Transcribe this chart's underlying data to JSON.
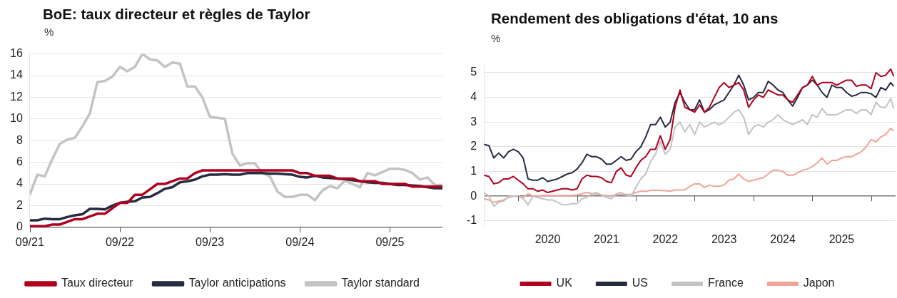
{
  "chart_data": [
    {
      "type": "line",
      "title": "BoE: taux directeur et règles de Taylor",
      "ylabel": "%",
      "grid": "y",
      "legend": "bottom",
      "marker": "none",
      "x": [
        "2021-09",
        "2021-10",
        "2021-11",
        "2021-12",
        "2022-01",
        "2022-02",
        "2022-03",
        "2022-04",
        "2022-05",
        "2022-06",
        "2022-07",
        "2022-08",
        "2022-09",
        "2022-10",
        "2022-11",
        "2022-12",
        "2023-01",
        "2023-02",
        "2023-03",
        "2023-04",
        "2023-05",
        "2023-06",
        "2023-07",
        "2023-08",
        "2023-09",
        "2023-10",
        "2023-11",
        "2023-12",
        "2024-01",
        "2024-02",
        "2024-03",
        "2024-04",
        "2024-05",
        "2024-06",
        "2024-07",
        "2024-08",
        "2024-09",
        "2024-10",
        "2024-11",
        "2024-12",
        "2025-01",
        "2025-02",
        "2025-03",
        "2025-04",
        "2025-05",
        "2025-06",
        "2025-07",
        "2025-08",
        "2025-09",
        "2025-10",
        "2025-11",
        "2025-12",
        "2026-01",
        "2026-02",
        "2026-03",
        "2026-04"
      ],
      "xlim": [
        "2021-09",
        "2026-04"
      ],
      "xticks": [
        {
          "value": "2021-09",
          "label": "09/21"
        },
        {
          "value": "2022-09",
          "label": "09/22"
        },
        {
          "value": "2023-09",
          "label": "09/23"
        },
        {
          "value": "2024-09",
          "label": "09/24"
        },
        {
          "value": "2025-09",
          "label": "09/25"
        }
      ],
      "ylim": [
        0,
        16
      ],
      "yticks": [
        0,
        2,
        4,
        6,
        8,
        10,
        12,
        14,
        16
      ],
      "series": [
        {
          "name": "Taux directeur",
          "color": "#b0001e",
          "values": [
            0.1,
            0.1,
            0.1,
            0.25,
            0.25,
            0.5,
            0.75,
            0.75,
            1.0,
            1.25,
            1.25,
            1.75,
            2.25,
            2.25,
            3.0,
            3.0,
            3.5,
            4.0,
            4.0,
            4.25,
            4.5,
            4.5,
            5.0,
            5.25,
            5.25,
            5.25,
            5.25,
            5.25,
            5.25,
            5.25,
            5.25,
            5.25,
            5.25,
            5.25,
            5.25,
            5.25,
            5.0,
            5.0,
            4.75,
            4.75,
            4.75,
            4.5,
            4.5,
            4.5,
            4.25,
            4.25,
            4.25,
            4.0,
            4.0,
            4.0,
            4.0,
            3.75,
            3.75,
            3.75,
            3.75,
            3.75
          ]
        },
        {
          "name": "Taylor anticipations",
          "color": "#262c40",
          "values": [
            0.65,
            0.65,
            0.8,
            0.75,
            0.75,
            0.95,
            1.1,
            1.2,
            1.7,
            1.7,
            1.65,
            2.0,
            2.25,
            2.35,
            2.4,
            2.75,
            2.8,
            3.15,
            3.55,
            3.7,
            4.15,
            4.25,
            4.4,
            4.7,
            4.85,
            4.85,
            4.9,
            4.85,
            4.85,
            5.0,
            5.0,
            5.0,
            4.95,
            4.95,
            4.9,
            4.85,
            4.65,
            4.6,
            4.75,
            4.6,
            4.55,
            4.5,
            4.45,
            4.35,
            4.25,
            4.15,
            4.1,
            4.1,
            4.0,
            3.9,
            3.9,
            3.85,
            3.8,
            3.7,
            3.6,
            3.6
          ]
        },
        {
          "name": "Taylor standard",
          "color": "#c3c3c3",
          "values": [
            3.0,
            4.85,
            4.7,
            6.3,
            7.7,
            8.1,
            8.25,
            9.3,
            10.5,
            13.4,
            13.5,
            13.9,
            14.8,
            14.4,
            14.8,
            16.0,
            15.5,
            15.4,
            14.8,
            15.2,
            15.1,
            13.0,
            13.0,
            12.0,
            10.2,
            10.1,
            10.0,
            6.8,
            5.7,
            5.9,
            5.9,
            5.0,
            4.7,
            3.3,
            2.8,
            2.8,
            3.0,
            3.0,
            2.5,
            3.4,
            3.8,
            3.6,
            4.3,
            4.0,
            3.7,
            5.0,
            4.8,
            5.1,
            5.4,
            5.4,
            5.3,
            5.0,
            4.4,
            4.6,
            3.9,
            3.9
          ]
        }
      ]
    },
    {
      "type": "line",
      "title": "Rendement des obligations d'état, 10 ans",
      "ylabel": "%",
      "grid": "y",
      "legend": "bottom",
      "marker": "none",
      "x": [
        "2019-06",
        "2019-07",
        "2019-08",
        "2019-09",
        "2019-10",
        "2019-11",
        "2019-12",
        "2020-01",
        "2020-02",
        "2020-03",
        "2020-04",
        "2020-05",
        "2020-06",
        "2020-07",
        "2020-08",
        "2020-09",
        "2020-10",
        "2020-11",
        "2020-12",
        "2021-01",
        "2021-02",
        "2021-03",
        "2021-04",
        "2021-05",
        "2021-06",
        "2021-07",
        "2021-08",
        "2021-09",
        "2021-10",
        "2021-11",
        "2021-12",
        "2022-01",
        "2022-02",
        "2022-03",
        "2022-04",
        "2022-05",
        "2022-06",
        "2022-07",
        "2022-08",
        "2022-09",
        "2022-10",
        "2022-11",
        "2022-12",
        "2023-01",
        "2023-02",
        "2023-03",
        "2023-04",
        "2023-05",
        "2023-06",
        "2023-07",
        "2023-08",
        "2023-09",
        "2023-10",
        "2023-11",
        "2023-12",
        "2024-01",
        "2024-02",
        "2024-03",
        "2024-04",
        "2024-05",
        "2024-06",
        "2024-07",
        "2024-08",
        "2024-09",
        "2024-10",
        "2024-11",
        "2024-12",
        "2025-01",
        "2025-02",
        "2025-03",
        "2025-04",
        "2025-05",
        "2025-06",
        "2025-07",
        "2025-08",
        "2025-09",
        "2025-10",
        "2025-11",
        "2025-12",
        "2026-01",
        "2026-02",
        "2026-03",
        "2026-04",
        "2026-05",
        "2026-05-20"
      ],
      "xlim": [
        "2019-06",
        "2026-06"
      ],
      "xticks": [
        {
          "value": "2020-01",
          "label": null
        },
        {
          "value": "2020-07",
          "label": "2020"
        },
        {
          "value": "2021-01",
          "label": null
        },
        {
          "value": "2021-07",
          "label": "2021"
        },
        {
          "value": "2022-01",
          "label": null
        },
        {
          "value": "2022-07",
          "label": "2022"
        },
        {
          "value": "2023-01",
          "label": null
        },
        {
          "value": "2023-07",
          "label": "2023"
        },
        {
          "value": "2024-01",
          "label": null
        },
        {
          "value": "2024-07",
          "label": "2024"
        },
        {
          "value": "2025-01",
          "label": null
        },
        {
          "value": "2025-07",
          "label": "2025"
        },
        {
          "value": "2026-01",
          "label": null
        }
      ],
      "ylim": [
        -1.2,
        5.3
      ],
      "yticks": [
        -1,
        0,
        1,
        2,
        3,
        4,
        5
      ],
      "series": [
        {
          "name": "UK",
          "color": "#b0001e",
          "values": [
            0.85,
            0.8,
            0.5,
            0.55,
            0.7,
            0.7,
            0.8,
            0.65,
            0.5,
            0.3,
            0.3,
            0.2,
            0.25,
            0.15,
            0.2,
            0.25,
            0.3,
            0.3,
            0.25,
            0.3,
            0.7,
            0.85,
            0.8,
            0.8,
            0.75,
            0.6,
            0.55,
            1.0,
            1.15,
            0.85,
            0.8,
            1.15,
            1.45,
            1.6,
            1.9,
            1.9,
            2.45,
            1.9,
            2.3,
            3.6,
            4.3,
            3.6,
            3.5,
            3.4,
            3.7,
            3.4,
            3.6,
            4.0,
            4.4,
            4.6,
            4.4,
            4.5,
            4.6,
            4.3,
            3.6,
            3.9,
            4.1,
            4.0,
            4.3,
            4.2,
            4.1,
            4.1,
            3.9,
            3.8,
            4.1,
            4.4,
            4.5,
            4.85,
            4.5,
            4.6,
            4.6,
            4.6,
            4.5,
            4.6,
            4.7,
            4.7,
            4.45,
            4.5,
            4.5,
            4.35,
            5.0,
            4.85,
            4.9,
            5.15,
            4.85
          ]
        },
        {
          "name": "US",
          "color": "#262c40",
          "values": [
            2.1,
            2.05,
            1.55,
            1.75,
            1.55,
            1.8,
            1.9,
            1.8,
            1.55,
            0.7,
            0.65,
            0.65,
            0.75,
            0.6,
            0.65,
            0.7,
            0.8,
            0.9,
            0.95,
            1.1,
            1.35,
            1.7,
            1.6,
            1.6,
            1.5,
            1.3,
            1.3,
            1.45,
            1.6,
            1.45,
            1.5,
            1.8,
            2.0,
            2.4,
            2.9,
            2.9,
            3.2,
            2.8,
            3.0,
            3.8,
            4.2,
            3.8,
            3.5,
            3.5,
            3.9,
            3.4,
            3.5,
            3.7,
            3.8,
            3.9,
            4.2,
            4.5,
            4.9,
            4.5,
            3.9,
            4.0,
            4.2,
            4.2,
            4.65,
            4.5,
            4.3,
            4.2,
            3.9,
            3.65,
            4.0,
            4.4,
            4.5,
            4.7,
            4.5,
            4.2,
            4.0,
            4.5,
            4.4,
            4.4,
            4.2,
            4.05,
            4.1,
            4.2,
            4.2,
            4.15,
            4.0,
            4.4,
            4.3,
            4.6,
            4.45
          ]
        },
        {
          "name": "France",
          "color": "#c3c3c3",
          "values": [
            0.15,
            0.0,
            -0.4,
            -0.25,
            -0.2,
            0.0,
            0.0,
            0.0,
            -0.1,
            -0.35,
            0.0,
            -0.05,
            -0.1,
            -0.15,
            -0.15,
            -0.25,
            -0.35,
            -0.35,
            -0.3,
            -0.3,
            -0.1,
            -0.05,
            0.1,
            0.15,
            0.05,
            -0.05,
            -0.1,
            0.1,
            0.15,
            0.05,
            0.0,
            0.35,
            0.7,
            0.9,
            1.4,
            1.7,
            2.2,
            1.7,
            1.9,
            2.8,
            3.0,
            2.6,
            2.9,
            2.5,
            3.0,
            2.8,
            2.9,
            3.0,
            2.9,
            3.0,
            3.2,
            3.4,
            3.5,
            3.2,
            2.5,
            2.8,
            2.9,
            2.8,
            3.0,
            3.1,
            3.3,
            3.1,
            3.0,
            2.9,
            3.0,
            3.1,
            2.9,
            3.3,
            3.2,
            3.55,
            3.3,
            3.3,
            3.3,
            3.4,
            3.5,
            3.5,
            3.35,
            3.5,
            3.5,
            3.3,
            3.8,
            3.6,
            3.6,
            3.95,
            3.55
          ]
        },
        {
          "name": "Japon",
          "color": "#f0a397",
          "values": [
            -0.1,
            -0.15,
            -0.25,
            -0.2,
            -0.15,
            -0.05,
            0.0,
            0.0,
            -0.05,
            0.1,
            0.0,
            0.0,
            0.03,
            0.03,
            0.03,
            0.03,
            0.03,
            0.03,
            0.03,
            0.05,
            0.1,
            0.15,
            0.1,
            0.08,
            0.05,
            0.03,
            0.02,
            0.05,
            0.08,
            0.07,
            0.07,
            0.15,
            0.2,
            0.2,
            0.24,
            0.24,
            0.24,
            0.22,
            0.2,
            0.25,
            0.25,
            0.25,
            0.4,
            0.5,
            0.5,
            0.35,
            0.45,
            0.4,
            0.4,
            0.45,
            0.65,
            0.7,
            0.9,
            0.7,
            0.6,
            0.65,
            0.7,
            0.75,
            0.9,
            1.05,
            1.05,
            1.0,
            0.85,
            0.85,
            0.95,
            1.05,
            1.1,
            1.2,
            1.35,
            1.55,
            1.3,
            1.45,
            1.45,
            1.55,
            1.6,
            1.6,
            1.7,
            1.8,
            2.0,
            2.3,
            2.2,
            2.4,
            2.5,
            2.75,
            2.65
          ]
        }
      ]
    }
  ]
}
